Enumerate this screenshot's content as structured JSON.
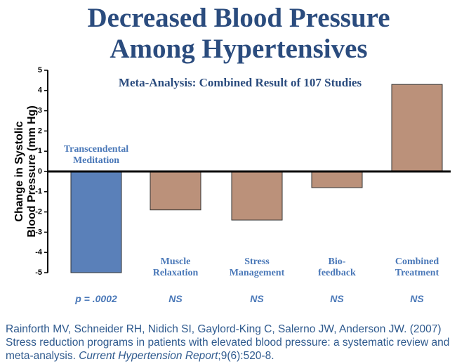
{
  "chart_data": {
    "type": "bar",
    "title": [
      "Decreased Blood Pressure",
      "Among Hypertensives"
    ],
    "subtitle": "Meta-Analysis: Combined Result of 107 Studies",
    "ylabel": [
      "Change in Systolic",
      "Blood Pressure (mm Hg)"
    ],
    "categories": [
      [
        "Transcendental",
        "Meditation"
      ],
      [
        "Muscle",
        "Relaxation"
      ],
      [
        "Stress",
        "Management"
      ],
      [
        "Bio-",
        "feedback"
      ],
      [
        "Combined",
        "Treatment"
      ]
    ],
    "values": [
      -5,
      -1.9,
      -2.4,
      -0.8,
      4.3
    ],
    "colors": [
      "#5a80b9",
      "#bb917a",
      "#bb917a",
      "#bb917a",
      "#bb917a"
    ],
    "annotations": [
      "p = .0002",
      "NS",
      "NS",
      "NS",
      "NS"
    ],
    "ylim": [
      -5,
      5
    ],
    "yticks": [
      5,
      4,
      3,
      2,
      1,
      0,
      -1,
      -2,
      -3,
      -4,
      -5
    ],
    "citation": [
      "Rainforth MV, Schneider RH, Nidich SI, Gaylord-King C, Salerno JW, Anderson JW. (2007) Stress reduction programs in patients with elevated blood pressure: a systematic review and meta-analysis. ",
      "Current Hypertension Report",
      ";9(6):520-8."
    ]
  }
}
